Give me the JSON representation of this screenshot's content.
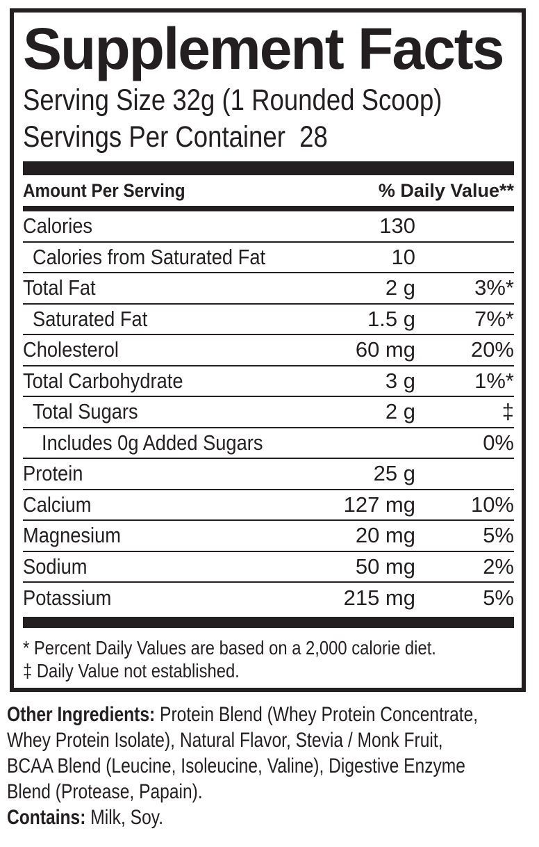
{
  "colors": {
    "ink": "#231f20",
    "background": "#ffffff"
  },
  "label": {
    "title": "Supplement Facts",
    "serving_size": "Serving Size 32g (1 Rounded Scoop)",
    "servings_per_container": "Servings Per Container  28",
    "header": {
      "amount_per_serving": "Amount Per Serving",
      "daily_value": "% Daily Value**"
    },
    "rows": [
      {
        "name": "Calories",
        "amount": "130",
        "dv": "",
        "indent": 0
      },
      {
        "name": "Calories from Saturated Fat",
        "amount": "10",
        "dv": "",
        "indent": 1
      },
      {
        "name": "Total Fat",
        "amount": "2 g",
        "dv": "3%*",
        "indent": 0
      },
      {
        "name": "Saturated Fat",
        "amount": "1.5 g",
        "dv": "7%*",
        "indent": 1
      },
      {
        "name": "Cholesterol",
        "amount": "60 mg",
        "dv": "20%",
        "indent": 0
      },
      {
        "name": "Total Carbohydrate",
        "amount": "3 g",
        "dv": "1%*",
        "indent": 0
      },
      {
        "name": "Total Sugars",
        "amount": "2 g",
        "dv": "‡",
        "indent": 1
      },
      {
        "name": "Includes 0g Added Sugars",
        "amount": "",
        "dv": "0%",
        "indent": 2
      },
      {
        "name": "Protein",
        "amount": "25 g",
        "dv": "",
        "indent": 0
      },
      {
        "name": "Calcium",
        "amount": "127 mg",
        "dv": "10%",
        "indent": 0
      },
      {
        "name": "Magnesium",
        "amount": "20 mg",
        "dv": "5%",
        "indent": 0
      },
      {
        "name": "Sodium",
        "amount": "50 mg",
        "dv": "2%",
        "indent": 0
      },
      {
        "name": "Potassium",
        "amount": "215 mg",
        "dv": "5%",
        "indent": 0
      }
    ],
    "footnotes": [
      "* Percent Daily Values are based on a 2,000 calorie diet.",
      "‡ Daily Value not established."
    ]
  },
  "ingredients": {
    "other_label": "Other Ingredients:",
    "other_text": " Protein Blend (Whey Protein Concentrate,\nWhey Protein Isolate), Natural Flavor, Stevia / Monk Fruit,\nBCAA Blend (Leucine, Isoleucine, Valine), Digestive Enzyme\nBlend (Protease, Papain).\n",
    "contains_label": "Contains:",
    "contains_text": " Milk, Soy."
  }
}
